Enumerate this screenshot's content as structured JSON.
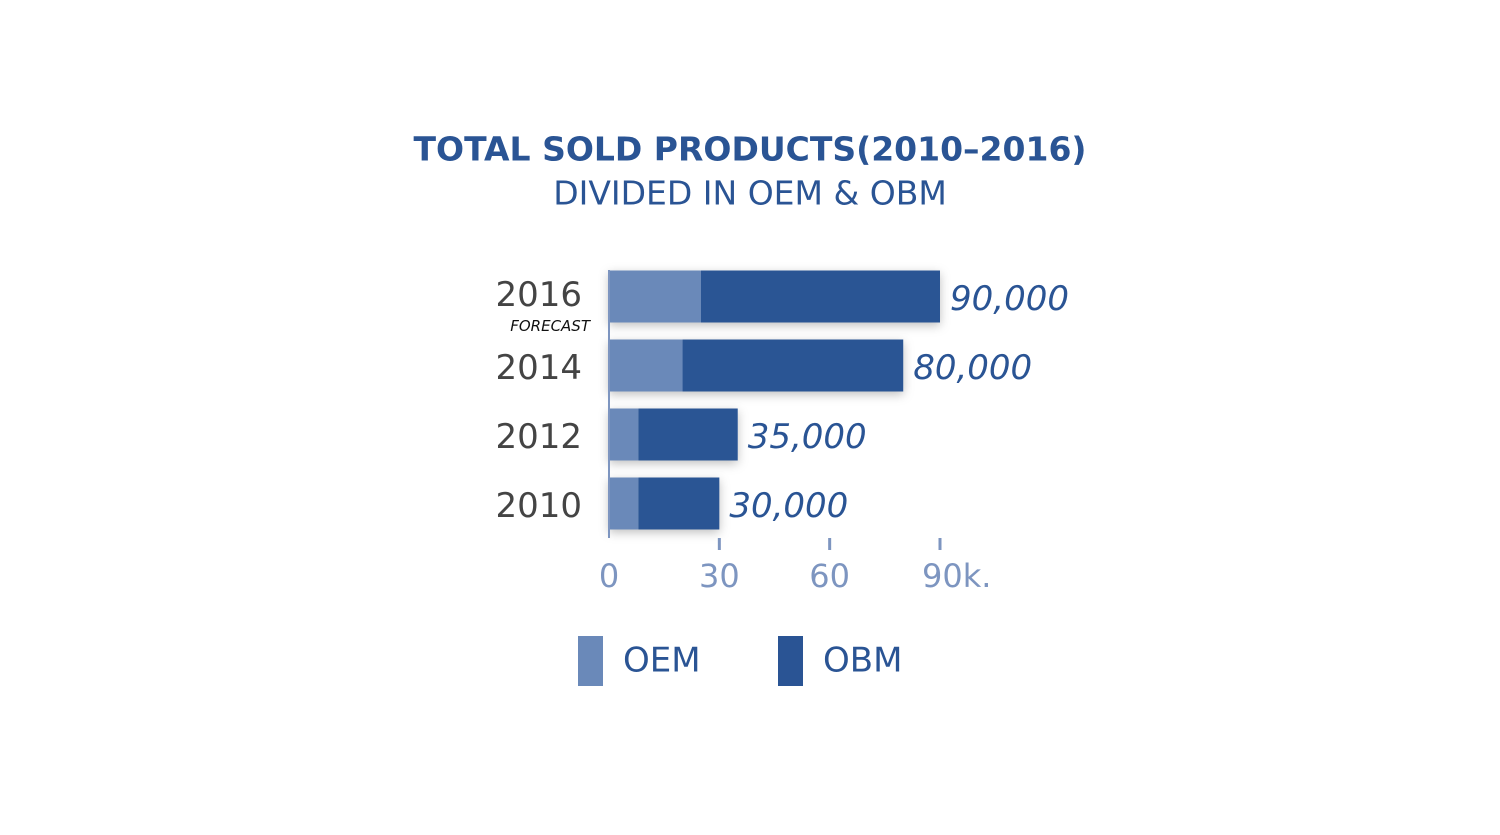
{
  "chart_data": {
    "type": "stacked-bar-horizontal",
    "title": "TOTAL SOLD PRODUCTS(2010–2016)",
    "subtitle": "DIVIDED IN OEM & OBM",
    "categories": [
      "2016",
      "2014",
      "2012",
      "2010"
    ],
    "category_notes": [
      "FORECAST",
      null,
      null,
      null
    ],
    "series": [
      {
        "name": "OEM",
        "color": "#6a89b9",
        "values": [
          25,
          20,
          8,
          8
        ]
      },
      {
        "name": "OBM",
        "color": "#2a5494",
        "values": [
          65,
          60,
          27,
          22
        ]
      }
    ],
    "totals": {
      "values": [
        90,
        80,
        35,
        30
      ],
      "value_labels": [
        "90,000",
        "80,000",
        "35,000",
        "30,000"
      ]
    },
    "xlim": [
      0,
      90
    ],
    "xticks": [
      0,
      30,
      60,
      {
        "value": 90,
        "label": "90k."
      }
    ],
    "legend": "bottom"
  }
}
